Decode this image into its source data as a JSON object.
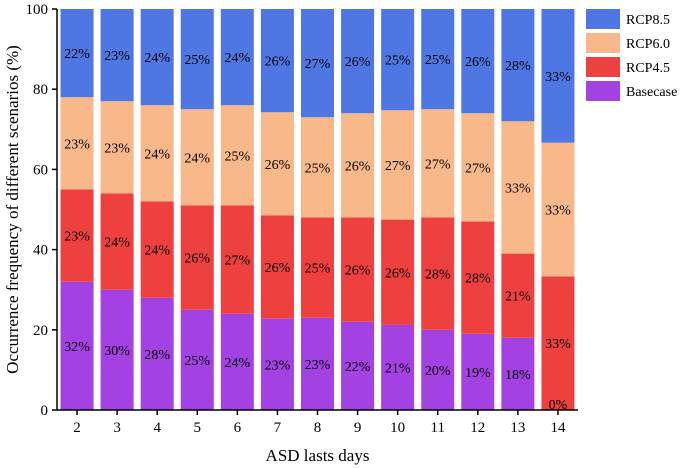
{
  "chart_data": {
    "type": "bar",
    "stacked": true,
    "xlabel": "ASD lasts days",
    "ylabel": "Occurrence frequency of different scenarios (%)",
    "ylim": [
      0,
      100
    ],
    "yticks": [
      0,
      20,
      40,
      60,
      80,
      100
    ],
    "categories": [
      "2",
      "3",
      "4",
      "5",
      "6",
      "7",
      "8",
      "9",
      "10",
      "11",
      "12",
      "13",
      "14"
    ],
    "legend_position": "right-top",
    "series": [
      {
        "name": "Basecase",
        "color": "#a341e2",
        "values": [
          32,
          30,
          28,
          25,
          24,
          23,
          23,
          22,
          21,
          20,
          19,
          18,
          0
        ],
        "labels": [
          "32%",
          "30%",
          "28%",
          "25%",
          "24%",
          "23%",
          "23%",
          "22%",
          "21%",
          "20%",
          "19%",
          "18%",
          "0%"
        ]
      },
      {
        "name": "RCP4.5",
        "color": "#ef4040",
        "values": [
          23,
          24,
          24,
          26,
          27,
          26,
          25,
          26,
          26,
          28,
          28,
          21,
          33
        ],
        "labels": [
          "23%",
          "24%",
          "24%",
          "26%",
          "27%",
          "26%",
          "25%",
          "26%",
          "26%",
          "28%",
          "28%",
          "21%",
          "33%"
        ]
      },
      {
        "name": "RCP6.0",
        "color": "#f8b88a",
        "values": [
          23,
          23,
          24,
          24,
          25,
          26,
          25,
          26,
          27,
          27,
          27,
          33,
          33
        ],
        "labels": [
          "23%",
          "23%",
          "24%",
          "24%",
          "25%",
          "26%",
          "25%",
          "26%",
          "27%",
          "27%",
          "27%",
          "33%",
          "33%"
        ]
      },
      {
        "name": "RCP8.5",
        "color": "#4f77e4",
        "values": [
          22,
          23,
          24,
          25,
          24,
          26,
          27,
          26,
          25,
          25,
          26,
          28,
          33
        ],
        "labels": [
          "22%",
          "23%",
          "24%",
          "25%",
          "24%",
          "26%",
          "27%",
          "26%",
          "25%",
          "25%",
          "26%",
          "28%",
          "33%"
        ]
      }
    ],
    "legend_order": [
      "RCP8.5",
      "RCP6.0",
      "RCP4.5",
      "Basecase"
    ]
  }
}
